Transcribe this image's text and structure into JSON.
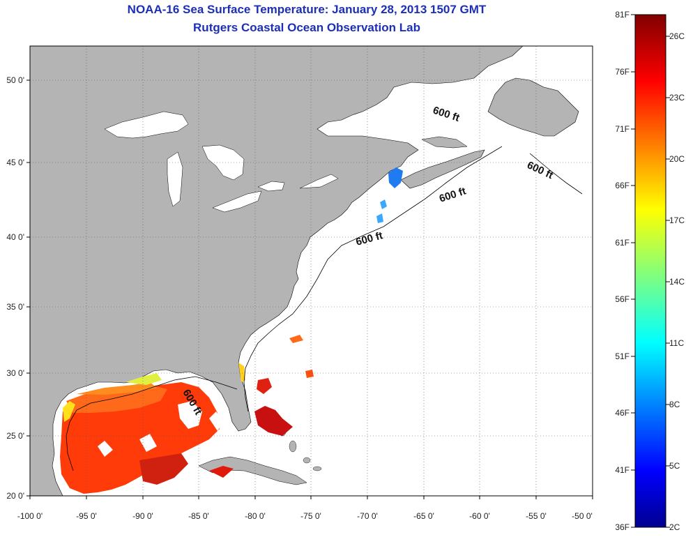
{
  "title": {
    "line1": "NOAA-16 Sea Surface Temperature:  January 28, 2013 1507 GMT",
    "line2": "Rutgers Coastal Ocean Observation Lab"
  },
  "map": {
    "lon_range": [
      -100,
      -50
    ],
    "lat_range": [
      20,
      52
    ],
    "lon_ticks": [
      "-100 0'",
      "-95 0'",
      "-90 0'",
      "-85 0'",
      "-80 0'",
      "-75 0'",
      "-70 0'",
      "-65 0'",
      "-60 0'",
      "-55 0'",
      "-50 0'"
    ],
    "lat_ticks": [
      "50 0'",
      "45 0'",
      "40 0'",
      "35 0'",
      "30 0'",
      "25 0'",
      "20 0'"
    ],
    "isobath_label": "600 ft",
    "land_color": "#b4b4b4",
    "no_data_color": "#ffffff",
    "grid": "dotted"
  },
  "colorbar": {
    "fahrenheit_labels": [
      "81F",
      "76F",
      "71F",
      "66F",
      "61F",
      "56F",
      "51F",
      "46F",
      "41F",
      "36F"
    ],
    "celsius_labels": [
      "26C",
      "23C",
      "20C",
      "17C",
      "14C",
      "11C",
      "8C",
      "5C",
      "2C"
    ],
    "range_f": [
      36,
      81
    ],
    "colormap": "jet"
  }
}
